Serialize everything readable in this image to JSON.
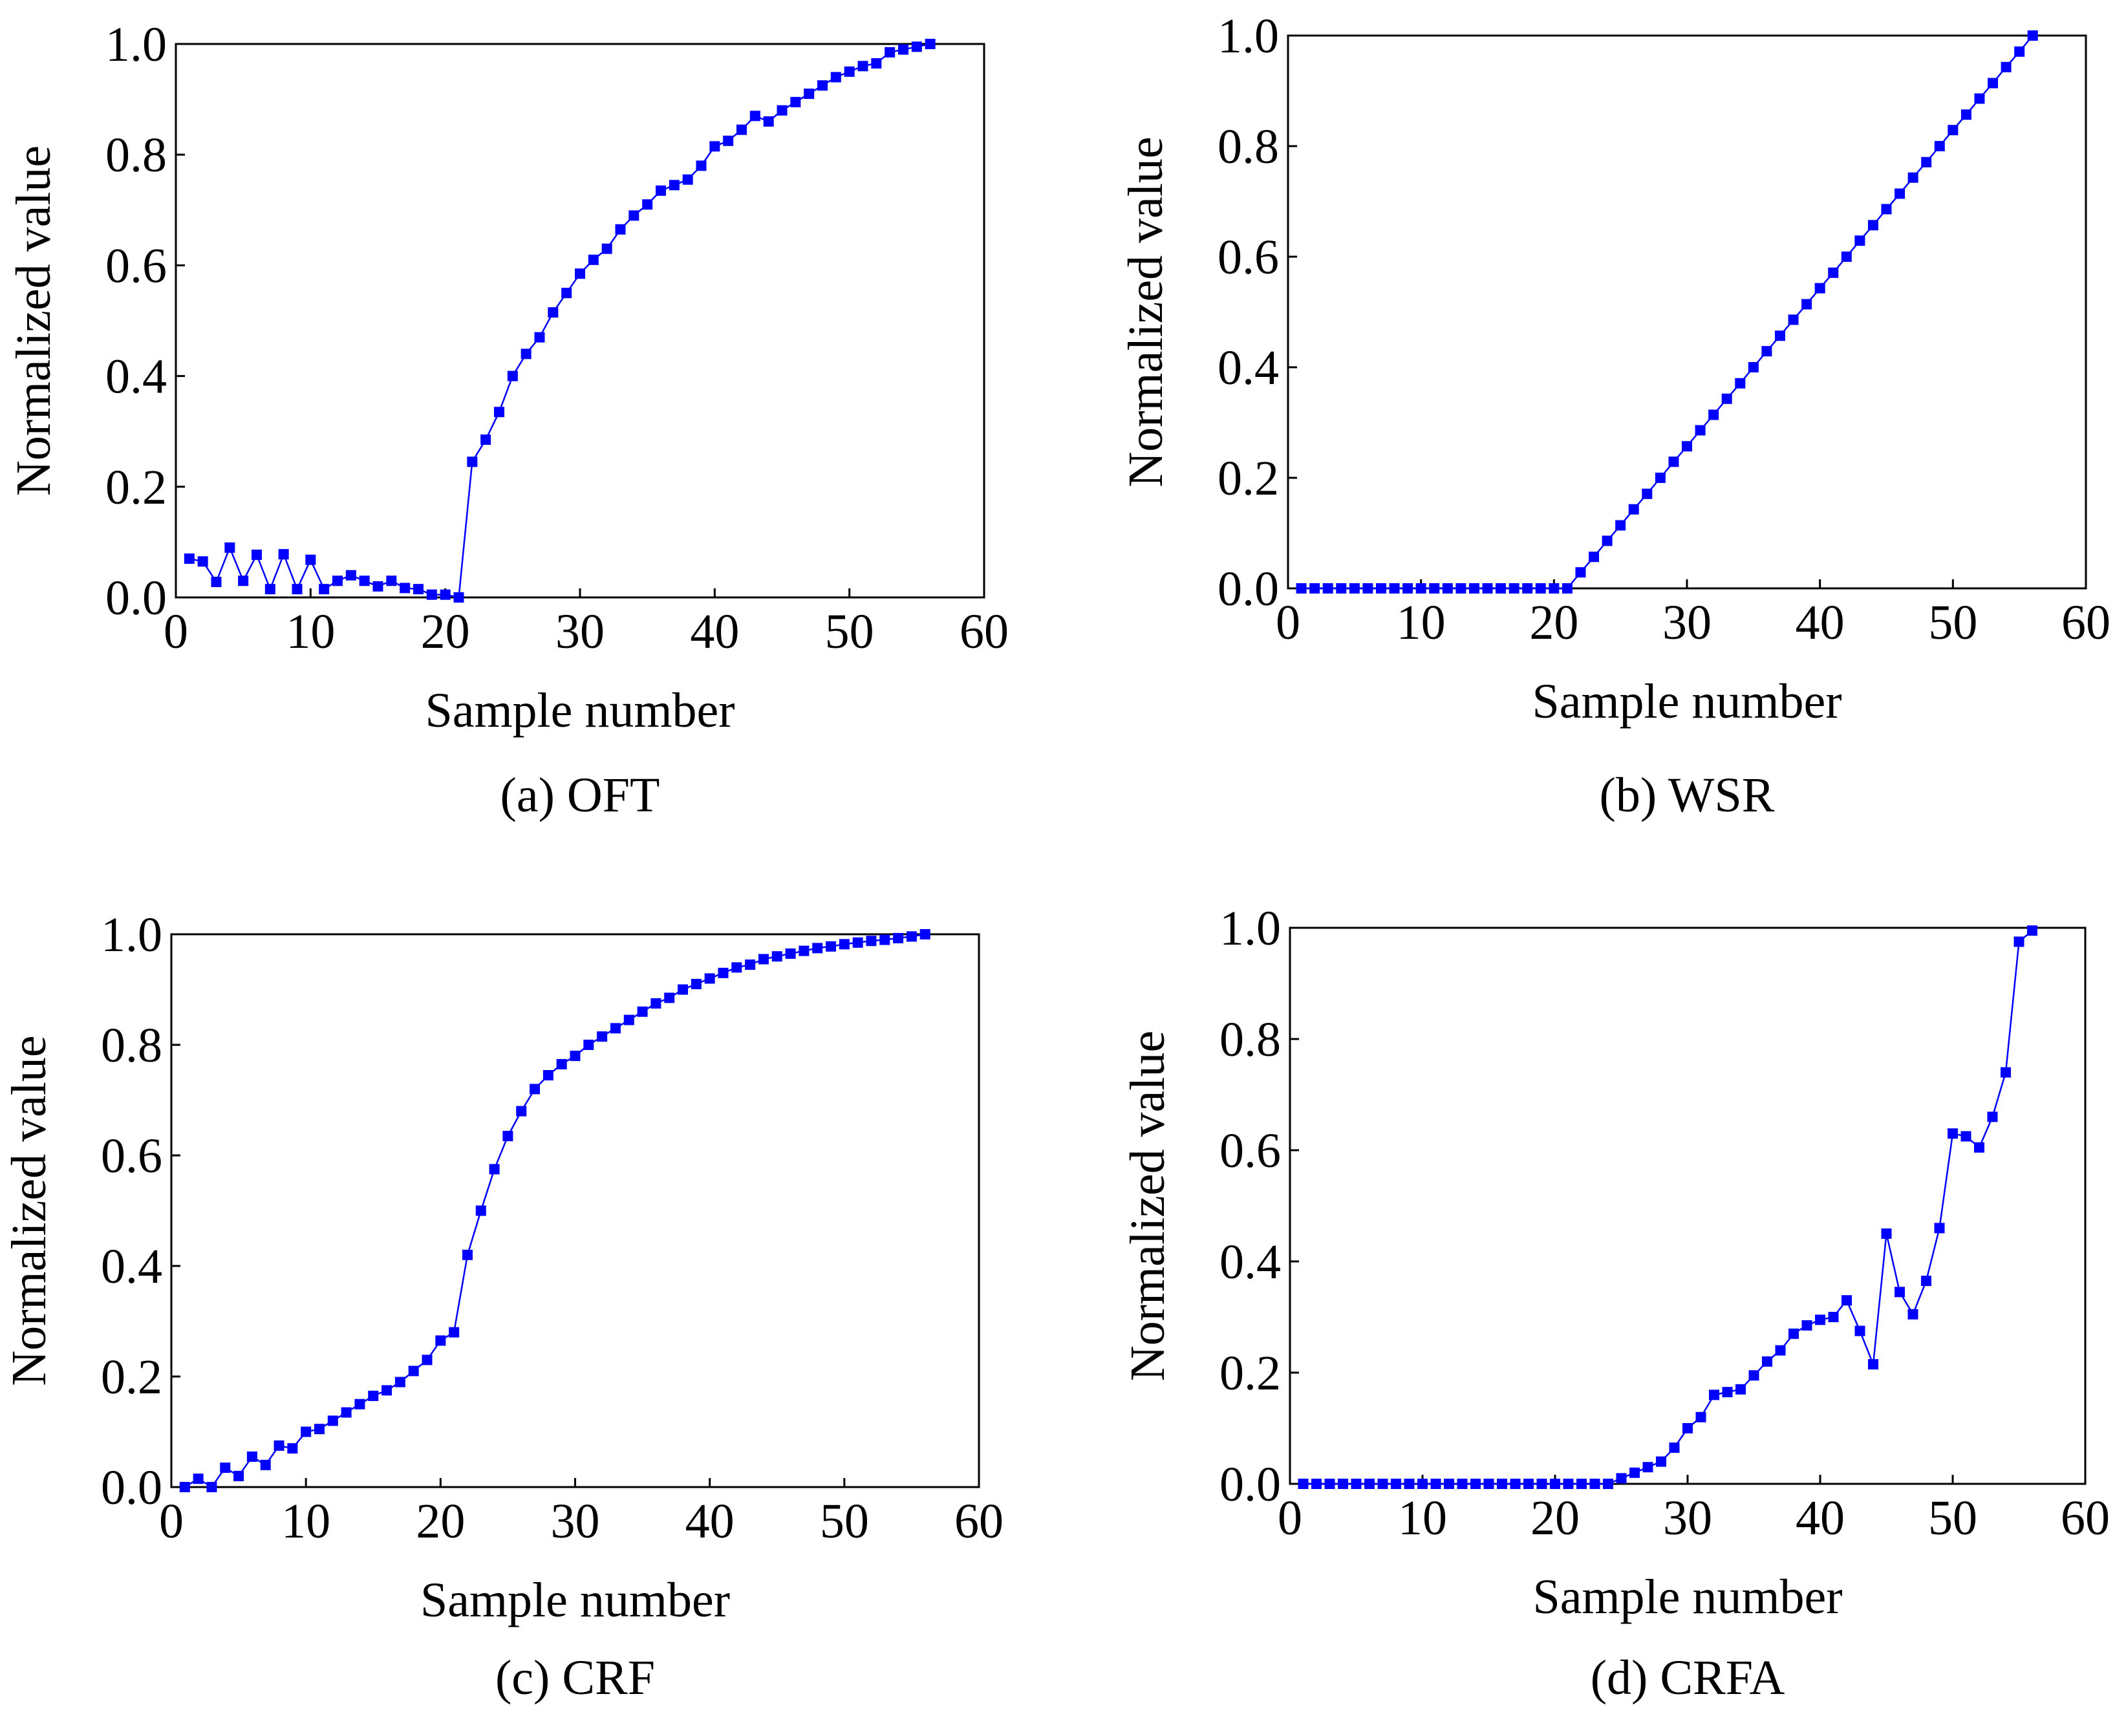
{
  "figure": {
    "series_color": "#0000ff",
    "marker": "filled-square"
  },
  "chart_data": [
    {
      "id": "a",
      "type": "line",
      "caption": "(a) OFT",
      "xlabel": "Sample number",
      "ylabel": "Normalized value",
      "xlim": [
        0,
        60
      ],
      "ylim": [
        0,
        1
      ],
      "xticks": [
        "0",
        "10",
        "20",
        "30",
        "40",
        "50",
        "60"
      ],
      "yticks": [
        "0.0",
        "0.2",
        "0.4",
        "0.6",
        "0.8",
        "1.0"
      ],
      "grid": false,
      "legend": "none",
      "series": [
        {
          "x": [
            1,
            2,
            3,
            4,
            5,
            6,
            7,
            8,
            9,
            10,
            11,
            12,
            13,
            14,
            15,
            16,
            17,
            18,
            19,
            20,
            21,
            22,
            23,
            24,
            25,
            26,
            27,
            28,
            29,
            30,
            31,
            32,
            33,
            34,
            35,
            36,
            37,
            38,
            39,
            40,
            41,
            42,
            43,
            44,
            45,
            46,
            47,
            48,
            49,
            50,
            51,
            52,
            53,
            54,
            55,
            56
          ],
          "values": [
            0.07,
            0.065,
            0.028,
            0.09,
            0.03,
            0.077,
            0.015,
            0.078,
            0.015,
            0.068,
            0.015,
            0.03,
            0.04,
            0.03,
            0.02,
            0.03,
            0.017,
            0.015,
            0.005,
            0.005,
            0.0,
            0.245,
            0.285,
            0.335,
            0.4,
            0.44,
            0.47,
            0.515,
            0.55,
            0.585,
            0.61,
            0.63,
            0.665,
            0.69,
            0.71,
            0.735,
            0.745,
            0.755,
            0.78,
            0.815,
            0.825,
            0.845,
            0.87,
            0.86,
            0.88,
            0.895,
            0.91,
            0.925,
            0.94,
            0.95,
            0.96,
            0.965,
            0.985,
            0.99,
            0.995,
            1.0
          ]
        }
      ]
    },
    {
      "id": "b",
      "type": "line",
      "caption": "(b) WSR",
      "xlabel": "Sample number",
      "ylabel": "Normalized value",
      "xlim": [
        0,
        60
      ],
      "ylim": [
        0,
        1
      ],
      "xticks": [
        "0",
        "10",
        "20",
        "30",
        "40",
        "50",
        "60"
      ],
      "yticks": [
        "0.0",
        "0.2",
        "0.4",
        "0.6",
        "0.8",
        "1.0"
      ],
      "grid": false,
      "legend": "none",
      "series": [
        {
          "x": [
            1,
            2,
            3,
            4,
            5,
            6,
            7,
            8,
            9,
            10,
            11,
            12,
            13,
            14,
            15,
            16,
            17,
            18,
            19,
            20,
            21,
            22,
            23,
            24,
            25,
            26,
            27,
            28,
            29,
            30,
            31,
            32,
            33,
            34,
            35,
            36,
            37,
            38,
            39,
            40,
            41,
            42,
            43,
            44,
            45,
            46,
            47,
            48,
            49,
            50,
            51,
            52,
            53,
            54,
            55,
            56
          ],
          "values": [
            0,
            0,
            0,
            0,
            0,
            0,
            0,
            0,
            0,
            0,
            0,
            0,
            0,
            0,
            0,
            0,
            0,
            0,
            0,
            0,
            0,
            0.029,
            0.057,
            0.086,
            0.114,
            0.143,
            0.171,
            0.2,
            0.229,
            0.257,
            0.286,
            0.314,
            0.343,
            0.371,
            0.4,
            0.429,
            0.457,
            0.486,
            0.514,
            0.543,
            0.571,
            0.6,
            0.629,
            0.657,
            0.686,
            0.714,
            0.743,
            0.771,
            0.8,
            0.829,
            0.857,
            0.886,
            0.914,
            0.943,
            0.971,
            1.0
          ]
        }
      ]
    },
    {
      "id": "c",
      "type": "line",
      "caption": "(c) CRF",
      "xlabel": "Sample number",
      "ylabel": "Normalized value",
      "xlim": [
        0,
        60
      ],
      "ylim": [
        0,
        1
      ],
      "xticks": [
        "0",
        "10",
        "20",
        "30",
        "40",
        "50",
        "60"
      ],
      "yticks": [
        "0.0",
        "0.2",
        "0.4",
        "0.6",
        "0.8",
        "1.0"
      ],
      "grid": false,
      "legend": "none",
      "series": [
        {
          "x": [
            1,
            2,
            3,
            4,
            5,
            6,
            7,
            8,
            9,
            10,
            11,
            12,
            13,
            14,
            15,
            16,
            17,
            18,
            19,
            20,
            21,
            22,
            23,
            24,
            25,
            26,
            27,
            28,
            29,
            30,
            31,
            32,
            33,
            34,
            35,
            36,
            37,
            38,
            39,
            40,
            41,
            42,
            43,
            44,
            45,
            46,
            47,
            48,
            49,
            50,
            51,
            52,
            53,
            54,
            55,
            56
          ],
          "values": [
            0.0,
            0.015,
            0.0,
            0.035,
            0.02,
            0.055,
            0.04,
            0.075,
            0.07,
            0.1,
            0.105,
            0.12,
            0.135,
            0.15,
            0.165,
            0.175,
            0.19,
            0.21,
            0.23,
            0.265,
            0.28,
            0.42,
            0.5,
            0.575,
            0.635,
            0.68,
            0.72,
            0.745,
            0.765,
            0.78,
            0.8,
            0.815,
            0.83,
            0.845,
            0.86,
            0.875,
            0.885,
            0.9,
            0.91,
            0.92,
            0.93,
            0.94,
            0.945,
            0.955,
            0.96,
            0.965,
            0.97,
            0.975,
            0.978,
            0.982,
            0.985,
            0.988,
            0.99,
            0.993,
            0.996,
            1.0
          ]
        }
      ]
    },
    {
      "id": "d",
      "type": "line",
      "caption": "(d) CRFA",
      "xlabel": "Sample number",
      "ylabel": "Normalized value",
      "xlim": [
        0,
        60
      ],
      "ylim": [
        0,
        1
      ],
      "xticks": [
        "0",
        "10",
        "20",
        "30",
        "40",
        "50",
        "60"
      ],
      "yticks": [
        "0.0",
        "0.2",
        "0.4",
        "0.6",
        "0.8",
        "1.0"
      ],
      "grid": false,
      "legend": "none",
      "series": [
        {
          "x": [
            1,
            2,
            3,
            4,
            5,
            6,
            7,
            8,
            9,
            10,
            11,
            12,
            13,
            14,
            15,
            16,
            17,
            18,
            19,
            20,
            21,
            22,
            23,
            24,
            25,
            26,
            27,
            28,
            29,
            30,
            31,
            32,
            33,
            34,
            35,
            36,
            37,
            38,
            39,
            40,
            41,
            42,
            43,
            44,
            45,
            46,
            47,
            48,
            49,
            50,
            51,
            52,
            53,
            54,
            55,
            56
          ],
          "values": [
            0,
            0,
            0,
            0,
            0,
            0,
            0,
            0,
            0,
            0,
            0,
            0,
            0,
            0,
            0,
            0,
            0,
            0,
            0,
            0,
            0,
            0,
            0,
            0,
            0.01,
            0.02,
            0.03,
            0.04,
            0.065,
            0.1,
            0.12,
            0.16,
            0.165,
            0.17,
            0.195,
            0.22,
            0.24,
            0.27,
            0.285,
            0.295,
            0.3,
            0.33,
            0.275,
            0.215,
            0.45,
            0.345,
            0.305,
            0.365,
            0.46,
            0.63,
            0.625,
            0.605,
            0.66,
            0.74,
            0.975,
            0.995
          ]
        }
      ]
    }
  ]
}
